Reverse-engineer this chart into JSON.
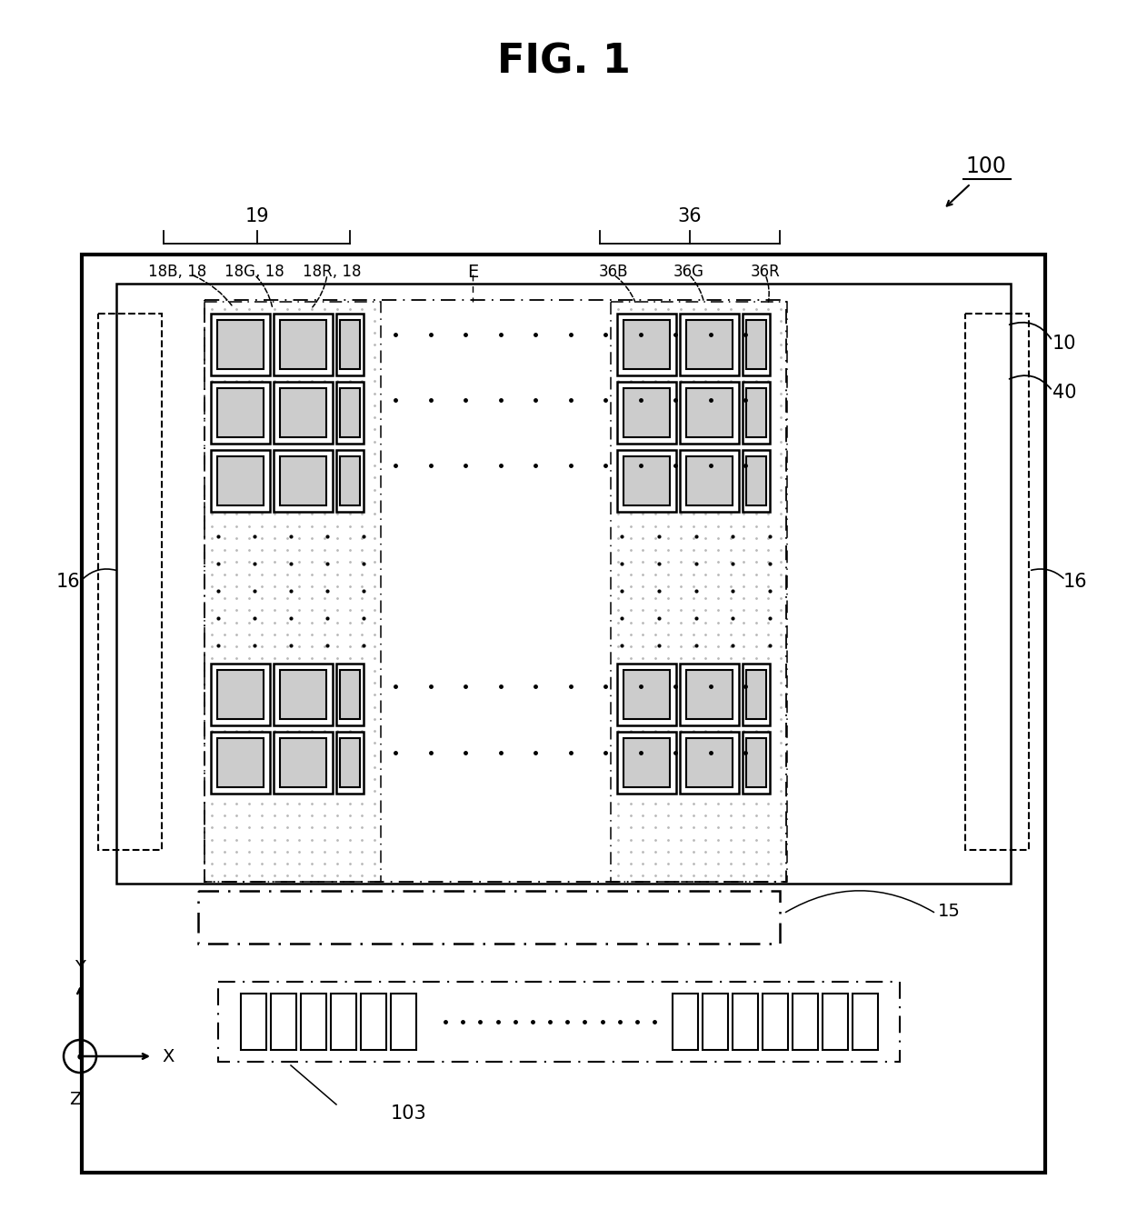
{
  "title": "FIG. 1",
  "fig_number": "100",
  "bg": "#ffffff",
  "label_19": "19",
  "label_36": "36",
  "label_18B18": "18B, 18",
  "label_18G18": "18G, 18",
  "label_18R18": "18R, 18",
  "label_E": "E",
  "label_36B": "36B",
  "label_36G": "36G",
  "label_36R": "36R",
  "label_10": "10",
  "label_40": "40",
  "label_16": "16",
  "label_15": "15",
  "label_103": "103",
  "axis_x": "X",
  "axis_y": "Y",
  "axis_z": "Z"
}
